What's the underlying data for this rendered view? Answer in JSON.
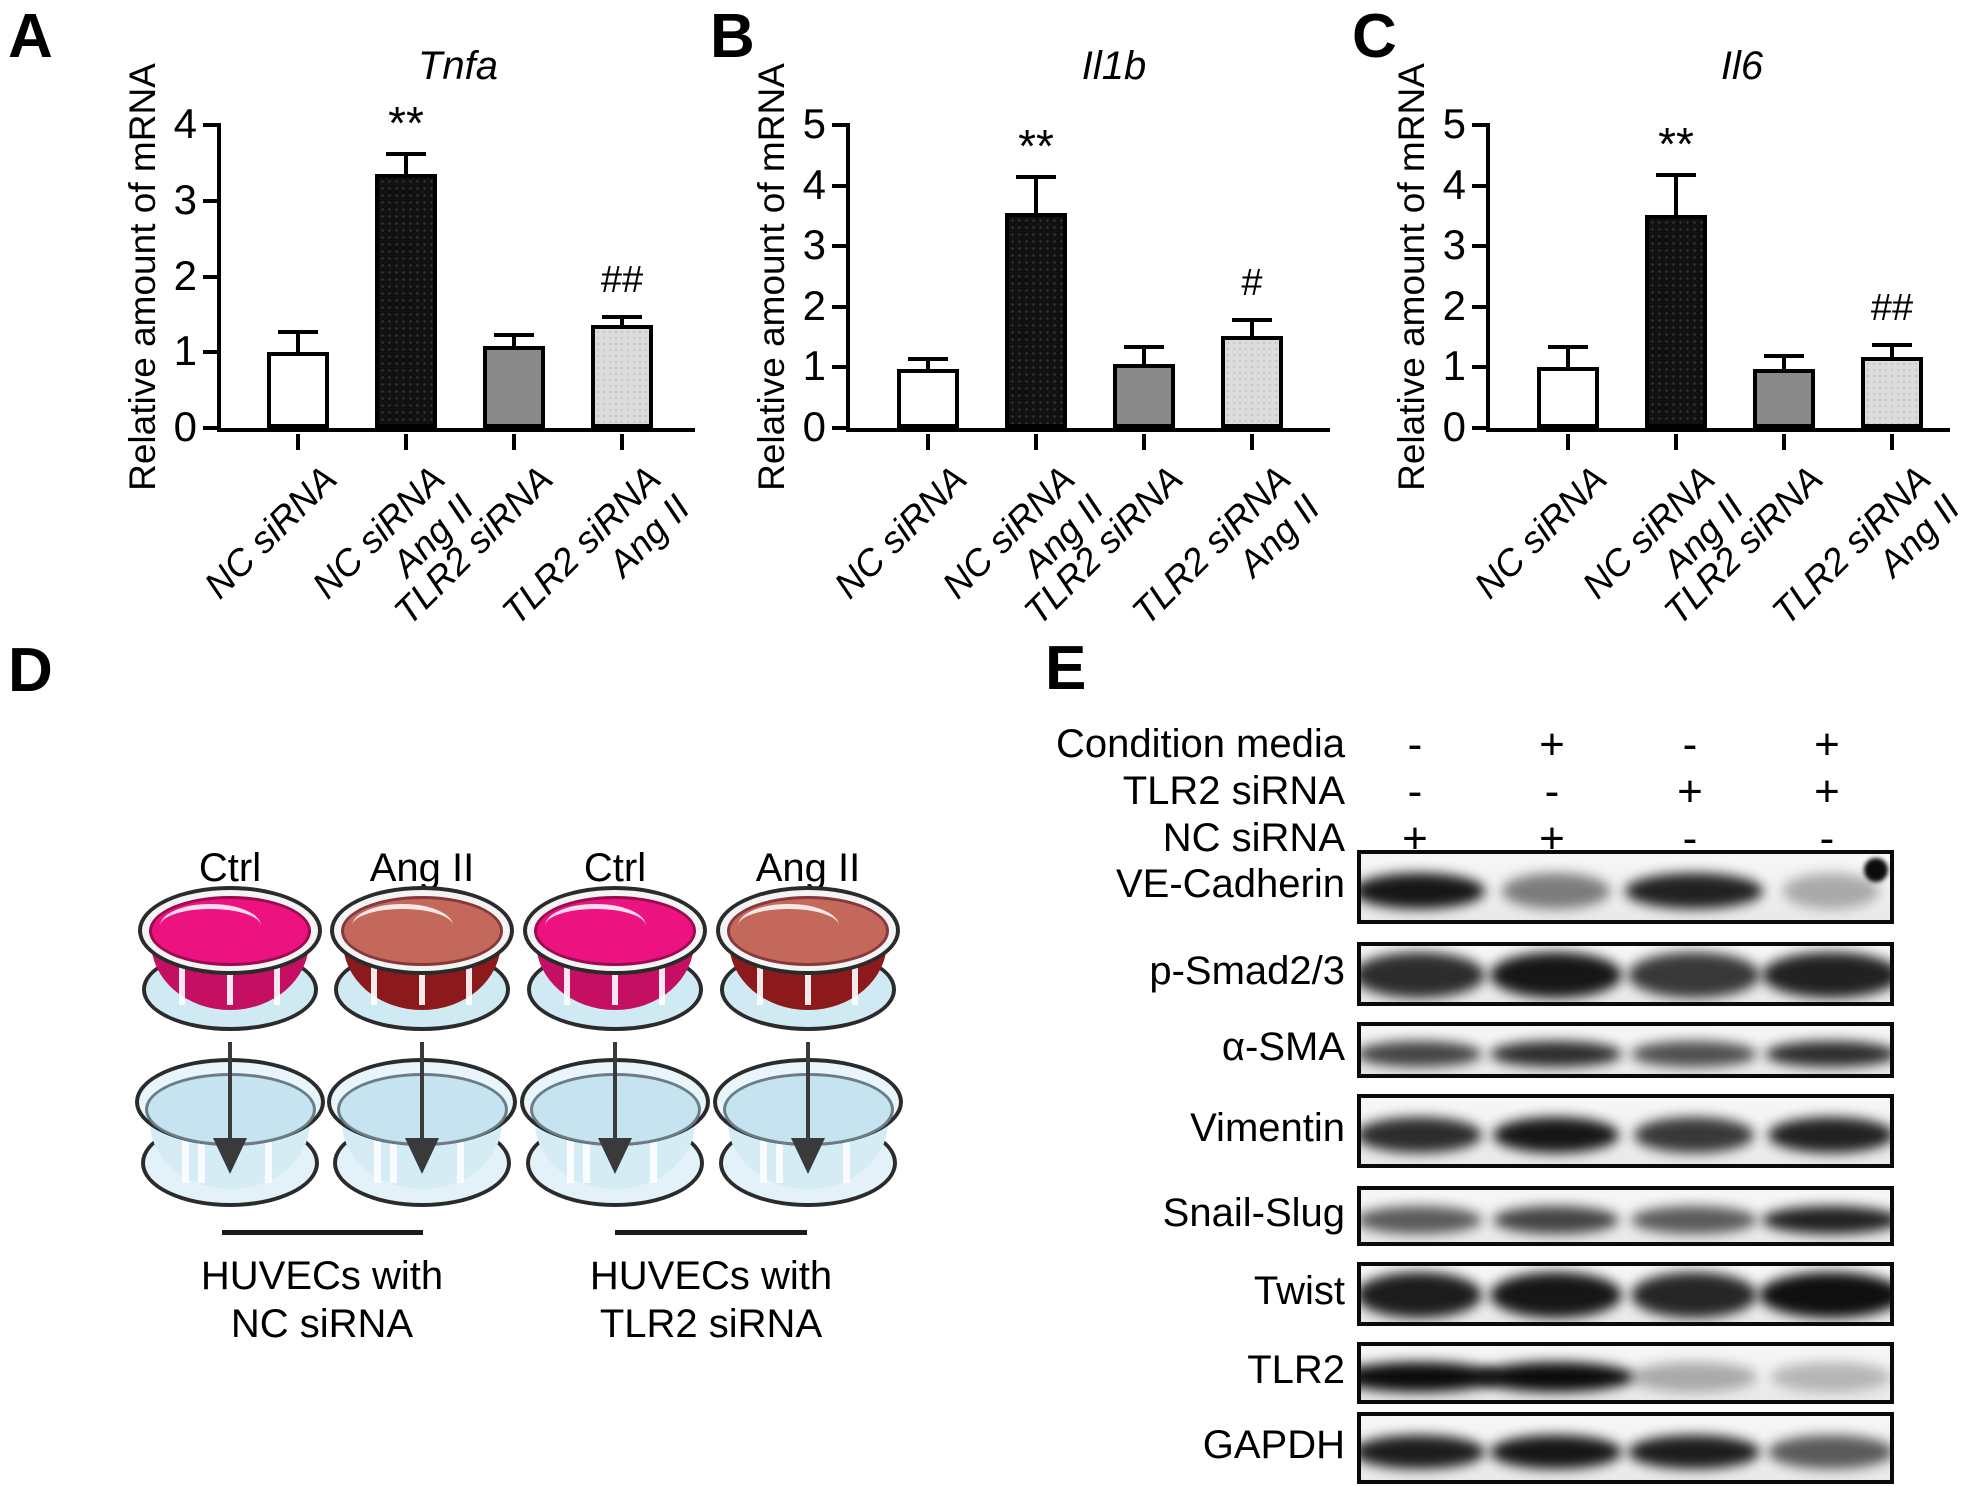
{
  "panel_labels": {
    "a": "A",
    "b": "B",
    "c": "C",
    "d": "D",
    "e": "E"
  },
  "chart_data": [
    {
      "type": "bar",
      "panel": "A",
      "title": "Tnfa",
      "ylabel": "Relative amount of mRNA",
      "ylim": [
        0,
        4
      ],
      "yticks": [
        0,
        1,
        2,
        3,
        4
      ],
      "categories": [
        "NC siRNA",
        "NC siRNA\nAng II",
        "TLR2 siRNA",
        "TLR2 siRNA\nAng II"
      ],
      "values": [
        1.0,
        3.35,
        1.08,
        1.36
      ],
      "errors": [
        0.27,
        0.27,
        0.15,
        0.1
      ],
      "significance": [
        "",
        "**",
        "",
        "##"
      ],
      "bar_colors": [
        "#ffffff",
        "#111111",
        "#8a8a8a",
        "#dcdcdc"
      ],
      "grid": false,
      "legend": "none"
    },
    {
      "type": "bar",
      "panel": "B",
      "title": "Il1b",
      "ylabel": "Relative amount of mRNA",
      "ylim": [
        0,
        5
      ],
      "yticks": [
        0,
        1,
        2,
        3,
        4,
        5
      ],
      "categories": [
        "NC siRNA",
        "NC siRNA\nAng II",
        "TLR2 siRNA",
        "TLR2 siRNA\nAng II"
      ],
      "values": [
        0.97,
        3.55,
        1.05,
        1.52
      ],
      "errors": [
        0.17,
        0.6,
        0.28,
        0.26
      ],
      "significance": [
        "",
        "**",
        "",
        "#"
      ],
      "bar_colors": [
        "#ffffff",
        "#111111",
        "#8a8a8a",
        "#dcdcdc"
      ],
      "grid": false,
      "legend": "none"
    },
    {
      "type": "bar",
      "panel": "C",
      "title": "Il6",
      "ylabel": "Relative amount of mRNA",
      "ylim": [
        0,
        5
      ],
      "yticks": [
        0,
        1,
        2,
        3,
        4,
        5
      ],
      "categories": [
        "NC siRNA",
        "NC siRNA\nAng II",
        "TLR2 siRNA",
        "TLR2 siRNA\nAng II"
      ],
      "values": [
        1.0,
        3.52,
        0.98,
        1.17
      ],
      "errors": [
        0.33,
        0.66,
        0.2,
        0.2
      ],
      "significance": [
        "",
        "**",
        "",
        "##"
      ],
      "bar_colors": [
        "#ffffff",
        "#111111",
        "#8a8a8a",
        "#dcdcdc"
      ],
      "grid": false,
      "legend": "none"
    }
  ],
  "diagram": {
    "dish_labels": [
      "Ctrl",
      "Ang II",
      "Ctrl",
      "Ang II"
    ],
    "dish_types": [
      "ctrl",
      "angii",
      "ctrl",
      "angii"
    ],
    "groups": [
      {
        "line1": "HUVECs with",
        "line2": "NC siRNA"
      },
      {
        "line1": "HUVECs with",
        "line2": "TLR2 siRNA"
      }
    ],
    "colors": {
      "ctrl_media": "#ec1380",
      "ctrl_wall": "#c40f63",
      "angii_media": "#c4685c",
      "angii_wall": "#8c1a1c",
      "dish_base": "#cfeaf2",
      "recipient_media": "#c6e4ef",
      "recipient_body": "#e3f2f8",
      "outline": "#2b2b2b",
      "arrow": "#3a3a3a"
    }
  },
  "western_blot": {
    "conditions": [
      {
        "label": "Condition media",
        "lanes": [
          "-",
          "+",
          "-",
          "+"
        ]
      },
      {
        "label": "TLR2 siRNA",
        "lanes": [
          "-",
          "-",
          "+",
          "+"
        ]
      },
      {
        "label": "NC siRNA",
        "lanes": [
          "+",
          "+",
          "-",
          "-"
        ]
      }
    ],
    "blots": [
      {
        "label": "VE-Cadherin",
        "bands": [
          0.95,
          0.5,
          0.9,
          0.3
        ],
        "widths": [
          1.1,
          0.9,
          1.15,
          0.8
        ],
        "spot": true,
        "tall": false
      },
      {
        "label": "p-Smad2/3",
        "bands": [
          0.85,
          0.95,
          0.8,
          0.9
        ],
        "widths": [
          1.1,
          1.1,
          1.1,
          1.15
        ],
        "spot": false,
        "tall": true
      },
      {
        "label": "α-SMA",
        "bands": [
          0.75,
          0.85,
          0.7,
          0.85
        ],
        "widths": [
          1.05,
          1.1,
          1.05,
          1.1
        ],
        "spot": false,
        "tall": false
      },
      {
        "label": "Vimentin",
        "bands": [
          0.85,
          0.95,
          0.8,
          0.9
        ],
        "widths": [
          1.05,
          1.05,
          1.0,
          1.05
        ],
        "spot": false,
        "tall": false
      },
      {
        "label": "Snail-Slug",
        "bands": [
          0.65,
          0.75,
          0.65,
          0.9
        ],
        "widths": [
          1.05,
          1.05,
          1.05,
          1.15
        ],
        "spot": false,
        "tall": false
      },
      {
        "label": "Twist",
        "bands": [
          0.92,
          0.95,
          0.88,
          0.98
        ],
        "widths": [
          1.05,
          1.1,
          1.05,
          1.2
        ],
        "spot": false,
        "tall": true
      },
      {
        "label": "TLR2",
        "bands": [
          1.0,
          1.0,
          0.3,
          0.25
        ],
        "widths": [
          1.35,
          1.3,
          1.05,
          1.0
        ],
        "spot": false,
        "tall": false
      },
      {
        "label": "GAPDH",
        "bands": [
          0.92,
          0.95,
          0.92,
          0.65
        ],
        "widths": [
          1.1,
          1.1,
          1.1,
          1.05
        ],
        "spot": false,
        "tall": false
      }
    ]
  }
}
